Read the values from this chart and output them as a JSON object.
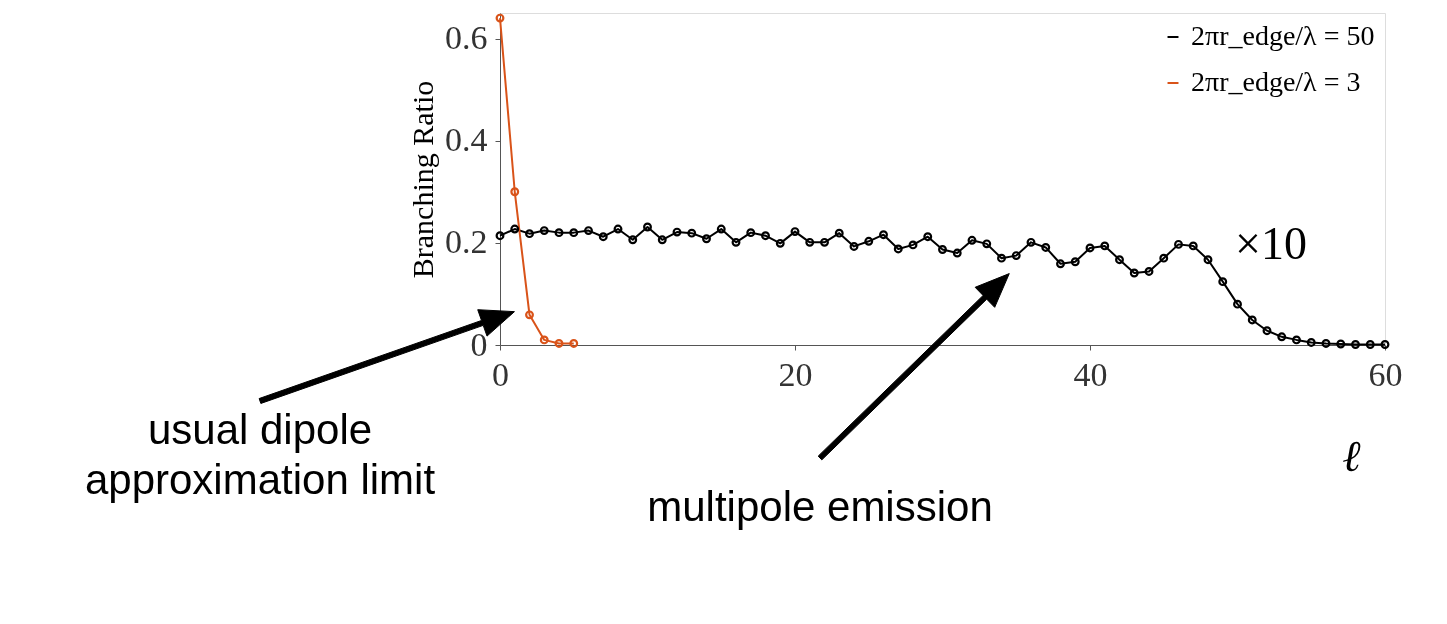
{
  "chart_data": {
    "type": "line",
    "xlabel": "ℓ",
    "ylabel": "Branching Ratio",
    "xlim": [
      0,
      60
    ],
    "xticks": [
      0,
      20,
      40,
      60
    ],
    "ylim": [
      0,
      0.65
    ],
    "yticks": [
      {
        "value": 0,
        "label": "0"
      },
      0.2,
      0.4,
      0.6
    ],
    "marker": "circle",
    "line_style": "solid",
    "grid": false,
    "legend": "top right",
    "series": [
      {
        "name": "2πr_edge/λ = 50",
        "color": "#000000",
        "x": [
          0,
          1,
          2,
          3,
          4,
          5,
          6,
          7,
          8,
          9,
          10,
          11,
          12,
          13,
          14,
          15,
          16,
          17,
          18,
          19,
          20,
          21,
          22,
          23,
          24,
          25,
          26,
          27,
          28,
          29,
          30,
          31,
          32,
          33,
          34,
          35,
          36,
          37,
          38,
          39,
          40,
          41,
          42,
          43,
          44,
          45,
          46,
          47,
          48,
          49,
          50,
          51,
          52,
          53,
          54,
          55,
          56,
          57,
          58,
          59,
          60
        ],
        "values": [
          0.214,
          0.227,
          0.218,
          0.224,
          0.22,
          0.22,
          0.224,
          0.212,
          0.227,
          0.206,
          0.231,
          0.206,
          0.221,
          0.219,
          0.208,
          0.227,
          0.201,
          0.22,
          0.214,
          0.199,
          0.222,
          0.201,
          0.201,
          0.219,
          0.193,
          0.203,
          0.216,
          0.188,
          0.196,
          0.212,
          0.187,
          0.18,
          0.205,
          0.198,
          0.17,
          0.175,
          0.201,
          0.191,
          0.159,
          0.163,
          0.19,
          0.194,
          0.167,
          0.141,
          0.144,
          0.17,
          0.197,
          0.194,
          0.167,
          0.124,
          0.08,
          0.049,
          0.028,
          0.016,
          0.01,
          0.005,
          0.003,
          0.002,
          0.001,
          0.001,
          0.001
        ]
      },
      {
        "name": "2πr_edge/λ = 3",
        "color": "#d95319",
        "x": [
          0,
          1,
          2,
          3,
          4,
          5
        ],
        "values": [
          0.64,
          0.3,
          0.059,
          0.01,
          0.003,
          0.003
        ]
      }
    ],
    "annotations": [
      "×10",
      "usual dipole approximation limit",
      "multipole emission"
    ]
  }
}
